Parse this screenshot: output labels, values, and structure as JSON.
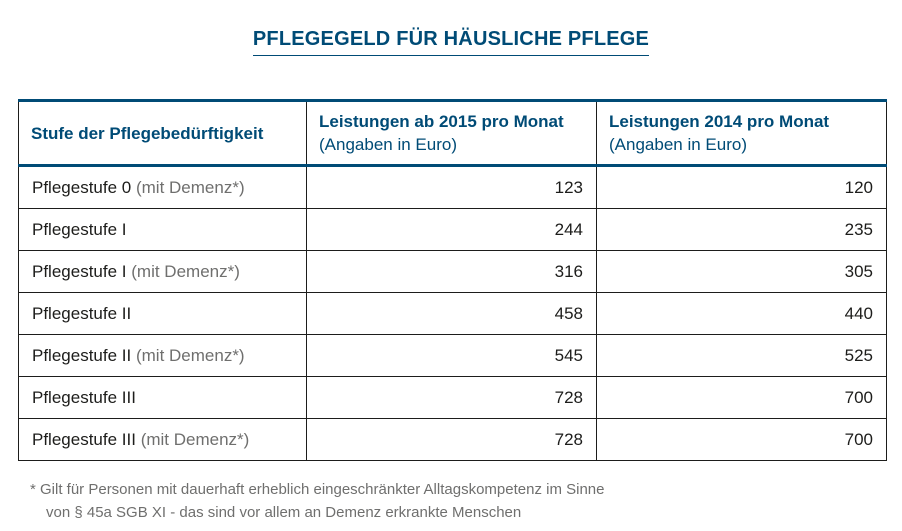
{
  "title": "PFLEGEGELD FÜR HÄUSLICHE PFLEGE",
  "table": {
    "headers": [
      {
        "main": "Stufe der Pflegebedürftigkeit",
        "sub": ""
      },
      {
        "main": "Leistungen ab 2015 pro Monat",
        "sub": "(Angaben in Euro)"
      },
      {
        "main": "Leistungen 2014 pro Monat",
        "sub": "(Angaben in Euro)"
      }
    ],
    "rows": [
      {
        "level": "Pflegestufe 0",
        "note": "(mit Demenz*)",
        "v2015": "123",
        "v2014": "120"
      },
      {
        "level": "Pflegestufe I",
        "note": "",
        "v2015": "244",
        "v2014": "235"
      },
      {
        "level": "Pflegestufe I",
        "note": "(mit Demenz*)",
        "v2015": "316",
        "v2014": "305"
      },
      {
        "level": "Pflegestufe II",
        "note": "",
        "v2015": "458",
        "v2014": "440"
      },
      {
        "level": "Pflegestufe II",
        "note": "(mit Demenz*)",
        "v2015": "545",
        "v2014": "525"
      },
      {
        "level": "Pflegestufe III",
        "note": "",
        "v2015": "728",
        "v2014": "700"
      },
      {
        "level": "Pflegestufe III",
        "note": "(mit Demenz*)",
        "v2015": "728",
        "v2014": "700"
      }
    ]
  },
  "footnote": {
    "line1": "* Gilt für Personen mit dauerhaft erheblich eingeschränkter Alltagskompetenz im Sinne",
    "line2": "von § 45a SGB XI - das sind vor allem an Demenz erkrankte Menschen"
  },
  "colors": {
    "heading_blue": "#004b76",
    "text": "#1d1d1b",
    "note_gray": "#6f6f6e"
  },
  "chart_data": {
    "type": "table",
    "title": "PFLEGEGELD FÜR HÄUSLICHE PFLEGE",
    "columns": [
      "Stufe der Pflegebedürftigkeit",
      "Leistungen ab 2015 pro Monat (Angaben in Euro)",
      "Leistungen 2014 pro Monat (Angaben in Euro)"
    ],
    "categories": [
      "Pflegestufe 0 (mit Demenz*)",
      "Pflegestufe I",
      "Pflegestufe I (mit Demenz*)",
      "Pflegestufe II",
      "Pflegestufe II (mit Demenz*)",
      "Pflegestufe III",
      "Pflegestufe III (mit Demenz*)"
    ],
    "series": [
      {
        "name": "Leistungen ab 2015 pro Monat",
        "values": [
          123,
          244,
          316,
          458,
          545,
          728,
          728
        ]
      },
      {
        "name": "Leistungen 2014 pro Monat",
        "values": [
          120,
          235,
          305,
          440,
          525,
          700,
          700
        ]
      }
    ]
  }
}
